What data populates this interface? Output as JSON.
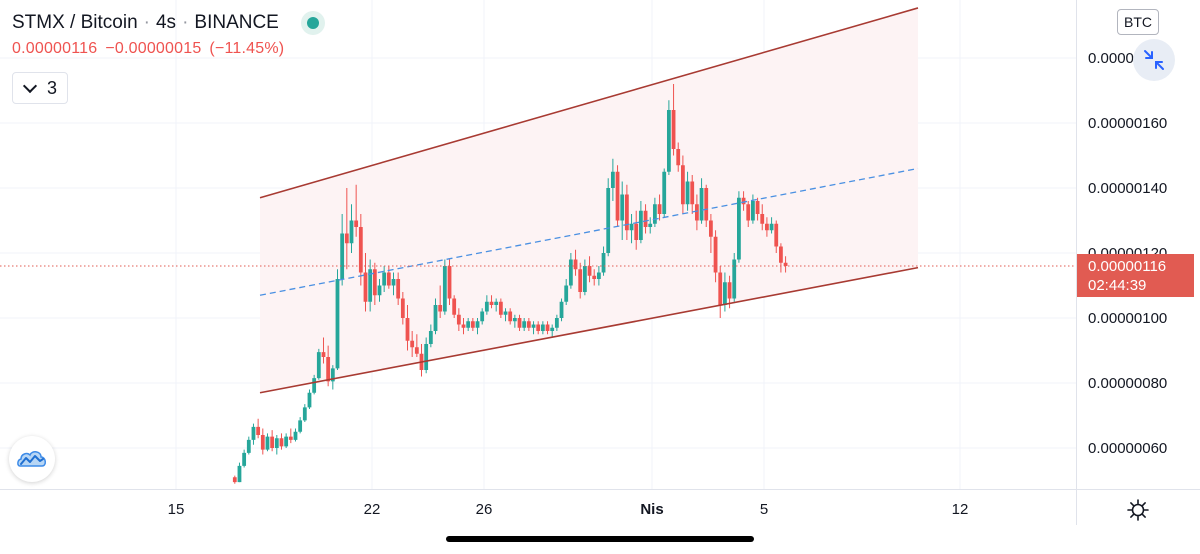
{
  "header": {
    "symbol": "STMX / Bitcoin",
    "interval": "4s",
    "exchange": "BINANCE",
    "last_price": "0.00000116",
    "change": "−0.00000015",
    "change_pct": "(−11.45%)",
    "indicator_count": "3"
  },
  "currency_label": "BTC",
  "price_tag": {
    "price": "0.00000116",
    "countdown": "02:44:39"
  },
  "icons": {
    "status": "status-dot-icon",
    "collapse": "chevron-down-icon",
    "fullscreen": "collapse-arrows-icon",
    "logo": "cloud-logo-icon",
    "settings": "gear-icon"
  },
  "colors": {
    "up": "#26a69a",
    "down": "#ef5350",
    "channel": "#a83a32",
    "channel_fill": "#fdf3f4",
    "midline": "#4a90e2",
    "current_price_line": "#e15b52",
    "price_tag_bg": "#e15b52"
  },
  "chart_data": {
    "type": "candlestick",
    "title": "STMX / Bitcoin",
    "x_axis": {
      "tick_labels": [
        "15",
        "22",
        "26",
        "Nis",
        "5",
        "12"
      ],
      "tick_days": [
        15,
        22,
        26,
        32,
        36,
        43
      ]
    },
    "y_axis": {
      "tick_labels": [
        "0.00000180",
        "0.00000160",
        "0.00000140",
        "0.00000120",
        "0.00000100",
        "0.00000080",
        "0.00000060"
      ],
      "tick_values": [
        1.8e-06,
        1.6e-06,
        1.4e-06,
        1.2e-06,
        1e-06,
        8e-07,
        6e-07
      ]
    },
    "current_price": 1.16e-06,
    "grid": true,
    "channel": {
      "upper": [
        [
          18.0,
          1.37e-06
        ],
        [
          41.5,
          1.954e-06
        ]
      ],
      "lower": [
        [
          18.0,
          7.7e-07
        ],
        [
          41.5,
          1.155e-06
        ]
      ],
      "middle": [
        [
          18.0,
          1.07e-06
        ],
        [
          41.5,
          1.46e-06
        ]
      ]
    },
    "series": [
      {
        "start_day": 17.1,
        "step_days": 0.1667,
        "ohlc": [
          [
            5.1e-07,
            5.15e-07,
            4.9e-07,
            4.95e-07
          ],
          [
            4.95e-07,
            5.55e-07,
            4.95e-07,
            5.45e-07
          ],
          [
            5.45e-07,
            5.95e-07,
            5.4e-07,
            5.85e-07
          ],
          [
            5.85e-07,
            6.35e-07,
            5.8e-07,
            6.25e-07
          ],
          [
            6.25e-07,
            6.75e-07,
            6.1e-07,
            6.65e-07
          ],
          [
            6.65e-07,
            6.9e-07,
            6.3e-07,
            6.4e-07
          ],
          [
            6.4e-07,
            6.6e-07,
            5.8e-07,
            5.95e-07
          ],
          [
            5.95e-07,
            6.45e-07,
            5.9e-07,
            6.35e-07
          ],
          [
            6.35e-07,
            6.55e-07,
            5.9e-07,
            6e-07
          ],
          [
            6e-07,
            6.4e-07,
            5.8e-07,
            6.3e-07
          ],
          [
            6.3e-07,
            6.45e-07,
            5.95e-07,
            6.05e-07
          ],
          [
            6.05e-07,
            6.45e-07,
            6e-07,
            6.35e-07
          ],
          [
            6.35e-07,
            6.6e-07,
            6.15e-07,
            6.25e-07
          ],
          [
            6.25e-07,
            6.6e-07,
            6.2e-07,
            6.5e-07
          ],
          [
            6.5e-07,
            6.95e-07,
            6.45e-07,
            6.85e-07
          ],
          [
            6.85e-07,
            7.35e-07,
            6.8e-07,
            7.25e-07
          ],
          [
            7.25e-07,
            7.8e-07,
            7.2e-07,
            7.7e-07
          ],
          [
            7.7e-07,
            8.25e-07,
            7.65e-07,
            8.15e-07
          ],
          [
            8.15e-07,
            9.05e-07,
            8.1e-07,
            8.95e-07
          ],
          [
            8.95e-07,
            9.4e-07,
            8.6e-07,
            8.8e-07
          ],
          [
            8.8e-07,
            9.15e-07,
            7.9e-07,
            8.05e-07
          ],
          [
            8.05e-07,
            8.55e-07,
            7.8e-07,
            8.45e-07
          ],
          [
            8.45e-07,
            1.15e-06,
            8.4e-07,
            1.12e-06
          ],
          [
            1.12e-06,
            1.32e-06,
            1.1e-06,
            1.26e-06
          ],
          [
            1.26e-06,
            1.4e-06,
            1.15e-06,
            1.23e-06
          ],
          [
            1.23e-06,
            1.35e-06,
            1.2e-06,
            1.3e-06
          ],
          [
            1.3e-06,
            1.41e-06,
            1.25e-06,
            1.28e-06
          ],
          [
            1.28e-06,
            1.32e-06,
            1.1e-06,
            1.14e-06
          ],
          [
            1.14e-06,
            1.2e-06,
            1.02e-06,
            1.05e-06
          ],
          [
            1.05e-06,
            1.18e-06,
            1.02e-06,
            1.15e-06
          ],
          [
            1.15e-06,
            1.17e-06,
            1.04e-06,
            1.07e-06
          ],
          [
            1.07e-06,
            1.12e-06,
            1.05e-06,
            1.1e-06
          ],
          [
            1.1e-06,
            1.16e-06,
            1.08e-06,
            1.14e-06
          ],
          [
            1.14e-06,
            1.16e-06,
            1.09e-06,
            1.1e-06
          ],
          [
            1.1e-06,
            1.14e-06,
            1.07e-06,
            1.12e-06
          ],
          [
            1.12e-06,
            1.14e-06,
            1.04e-06,
            1.06e-06
          ],
          [
            1.06e-06,
            1.08e-06,
            9.8e-07,
            1e-06
          ],
          [
            1e-06,
            1.04e-06,
            9e-07,
            9.3e-07
          ],
          [
            9.3e-07,
            9.6e-07,
            8.8e-07,
            9.1e-07
          ],
          [
            9.1e-07,
            9.5e-07,
            8.8e-07,
            8.9e-07
          ],
          [
            8.9e-07,
            9.2e-07,
            8.2e-07,
            8.4e-07
          ],
          [
            8.4e-07,
            9.4e-07,
            8.3e-07,
            9.2e-07
          ],
          [
            9.2e-07,
            9.8e-07,
            9.1e-07,
            9.6e-07
          ],
          [
            9.6e-07,
            1.06e-06,
            9.5e-07,
            1.04e-06
          ],
          [
            1.04e-06,
            1.1e-06,
            1e-06,
            1.02e-06
          ],
          [
            1.02e-06,
            1.18e-06,
            1.01e-06,
            1.16e-06
          ],
          [
            1.16e-06,
            1.18e-06,
            1.04e-06,
            1.06e-06
          ],
          [
            1.06e-06,
            1.07e-06,
            1e-06,
            1.01e-06
          ],
          [
            1.01e-06,
            1.03e-06,
            9.6e-07,
            9.8e-07
          ],
          [
            9.8e-07,
            1e-06,
            9.5e-07,
            9.7e-07
          ],
          [
            9.7e-07,
            1e-06,
            9.6e-07,
            9.9e-07
          ],
          [
            9.9e-07,
            1e-06,
            9.6e-07,
            9.7e-07
          ],
          [
            9.7e-07,
            1e-06,
            9.5e-07,
            9.9e-07
          ],
          [
            9.9e-07,
            1.03e-06,
            9.8e-07,
            1.02e-06
          ],
          [
            1.02e-06,
            1.07e-06,
            1.01e-06,
            1.05e-06
          ],
          [
            1.05e-06,
            1.07e-06,
            1.03e-06,
            1.04e-06
          ],
          [
            1.04e-06,
            1.06e-06,
            1.02e-06,
            1.05e-06
          ],
          [
            1.05e-06,
            1.06e-06,
            1e-06,
            1.01e-06
          ],
          [
            1.01e-06,
            1.03e-06,
            9.9e-07,
            1.02e-06
          ],
          [
            1.02e-06,
            1.03e-06,
            9.8e-07,
            9.9e-07
          ],
          [
            9.9e-07,
            1.01e-06,
            9.7e-07,
            1e-06
          ],
          [
            1e-06,
            1.01e-06,
            9.6e-07,
            9.7e-07
          ],
          [
            9.7e-07,
            1e-06,
            9.6e-07,
            9.9e-07
          ],
          [
            9.9e-07,
            1e-06,
            9.6e-07,
            9.7e-07
          ],
          [
            9.7e-07,
            9.9e-07,
            9.5e-07,
            9.8e-07
          ],
          [
            9.8e-07,
            9.9e-07,
            9.5e-07,
            9.6e-07
          ],
          [
            9.6e-07,
            9.9e-07,
            9.5e-07,
            9.8e-07
          ],
          [
            9.8e-07,
            9.9e-07,
            9.5e-07,
            9.6e-07
          ],
          [
            9.6e-07,
            9.8e-07,
            9.4e-07,
            9.7e-07
          ],
          [
            9.7e-07,
            1.01e-06,
            9.6e-07,
            1e-06
          ],
          [
            1e-06,
            1.06e-06,
            9.9e-07,
            1.05e-06
          ],
          [
            1.05e-06,
            1.12e-06,
            1.04e-06,
            1.1e-06
          ],
          [
            1.1e-06,
            1.2e-06,
            1.09e-06,
            1.18e-06
          ],
          [
            1.18e-06,
            1.21e-06,
            1.13e-06,
            1.15e-06
          ],
          [
            1.15e-06,
            1.17e-06,
            1.06e-06,
            1.08e-06
          ],
          [
            1.08e-06,
            1.18e-06,
            1.07e-06,
            1.16e-06
          ],
          [
            1.16e-06,
            1.19e-06,
            1.11e-06,
            1.13e-06
          ],
          [
            1.13e-06,
            1.15e-06,
            1.1e-06,
            1.12e-06
          ],
          [
            1.12e-06,
            1.16e-06,
            1.1e-06,
            1.14e-06
          ],
          [
            1.14e-06,
            1.22e-06,
            1.13e-06,
            1.2e-06
          ],
          [
            1.2e-06,
            1.43e-06,
            1.19e-06,
            1.4e-06
          ],
          [
            1.4e-06,
            1.49e-06,
            1.36e-06,
            1.45e-06
          ],
          [
            1.45e-06,
            1.47e-06,
            1.28e-06,
            1.3e-06
          ],
          [
            1.3e-06,
            1.42e-06,
            1.24e-06,
            1.38e-06
          ],
          [
            1.38e-06,
            1.41e-06,
            1.24e-06,
            1.27e-06
          ],
          [
            1.27e-06,
            1.32e-06,
            1.23e-06,
            1.29e-06
          ],
          [
            1.29e-06,
            1.33e-06,
            1.21e-06,
            1.24e-06
          ],
          [
            1.24e-06,
            1.36e-06,
            1.23e-06,
            1.33e-06
          ],
          [
            1.33e-06,
            1.35e-06,
            1.26e-06,
            1.28e-06
          ],
          [
            1.28e-06,
            1.31e-06,
            1.26e-06,
            1.29e-06
          ],
          [
            1.29e-06,
            1.37e-06,
            1.28e-06,
            1.35e-06
          ],
          [
            1.35e-06,
            1.38e-06,
            1.3e-06,
            1.32e-06
          ],
          [
            1.32e-06,
            1.46e-06,
            1.31e-06,
            1.45e-06
          ],
          [
            1.45e-06,
            1.67e-06,
            1.44e-06,
            1.64e-06
          ],
          [
            1.64e-06,
            1.72e-06,
            1.5e-06,
            1.52e-06
          ],
          [
            1.52e-06,
            1.54e-06,
            1.45e-06,
            1.47e-06
          ],
          [
            1.47e-06,
            1.5e-06,
            1.32e-06,
            1.35e-06
          ],
          [
            1.35e-06,
            1.45e-06,
            1.33e-06,
            1.42e-06
          ],
          [
            1.42e-06,
            1.44e-06,
            1.32e-06,
            1.35e-06
          ],
          [
            1.35e-06,
            1.38e-06,
            1.27e-06,
            1.3e-06
          ],
          [
            1.3e-06,
            1.43e-06,
            1.29e-06,
            1.4e-06
          ],
          [
            1.4e-06,
            1.41e-06,
            1.28e-06,
            1.3e-06
          ],
          [
            1.3e-06,
            1.32e-06,
            1.2e-06,
            1.25e-06
          ],
          [
            1.25e-06,
            1.27e-06,
            1.11e-06,
            1.14e-06
          ],
          [
            1.14e-06,
            1.16e-06,
            1e-06,
            1.04e-06
          ],
          [
            1.04e-06,
            1.14e-06,
            1.02e-06,
            1.11e-06
          ],
          [
            1.11e-06,
            1.13e-06,
            1.03e-06,
            1.06e-06
          ],
          [
            1.06e-06,
            1.2e-06,
            1.05e-06,
            1.18e-06
          ],
          [
            1.18e-06,
            1.39e-06,
            1.17e-06,
            1.37e-06
          ],
          [
            1.37e-06,
            1.39e-06,
            1.33e-06,
            1.35e-06
          ],
          [
            1.35e-06,
            1.36e-06,
            1.28e-06,
            1.3e-06
          ],
          [
            1.3e-06,
            1.38e-06,
            1.29e-06,
            1.36e-06
          ],
          [
            1.36e-06,
            1.37e-06,
            1.3e-06,
            1.32e-06
          ],
          [
            1.32e-06,
            1.35e-06,
            1.27e-06,
            1.29e-06
          ],
          [
            1.29e-06,
            1.31e-06,
            1.25e-06,
            1.27e-06
          ],
          [
            1.27e-06,
            1.31e-06,
            1.26e-06,
            1.29e-06
          ],
          [
            1.29e-06,
            1.3e-06,
            1.2e-06,
            1.22e-06
          ],
          [
            1.22e-06,
            1.23e-06,
            1.14e-06,
            1.17e-06
          ],
          [
            1.17e-06,
            1.19e-06,
            1.14e-06,
            1.16e-06
          ]
        ]
      }
    ]
  }
}
